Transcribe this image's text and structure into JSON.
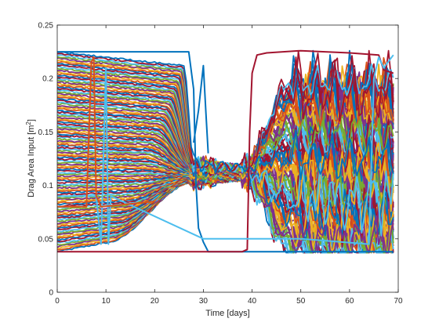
{
  "chart_data": {
    "type": "line",
    "title": "",
    "xlabel": "Time [days]",
    "ylabel_main": "Drag Area Input [m",
    "ylabel_sup": "2",
    "ylabel_end": "]",
    "xlim": [
      0,
      70
    ],
    "ylim": [
      0,
      0.25
    ],
    "x_ticks": [
      0,
      10,
      20,
      30,
      40,
      50,
      60,
      70
    ],
    "y_ticks": [
      0,
      0.05,
      0.1,
      0.15,
      0.2,
      0.25
    ],
    "x_tick_labels": [
      "0",
      "10",
      "20",
      "30",
      "40",
      "50",
      "60",
      "70"
    ],
    "y_tick_labels": [
      "0",
      "0.05",
      "0.1",
      "0.15",
      "0.2",
      "0.25"
    ],
    "grid": false,
    "legend": "none",
    "series_count": 120,
    "series_colors": [
      "#0072BD",
      "#D95319",
      "#EDB120",
      "#7E2F8E",
      "#77AC30",
      "#4DBEEE",
      "#A2142F"
    ],
    "highlight_series": [
      {
        "color": "#0072BD",
        "x": [
          0,
          27,
          28,
          28.5,
          29,
          30,
          31,
          32,
          69
        ],
        "y": [
          0.225,
          0.225,
          0.19,
          0.1,
          0.06,
          0.047,
          0.038,
          0.038,
          0.038
        ]
      },
      {
        "color": "#0072BD",
        "x": [
          28,
          29,
          30,
          30.5,
          31
        ],
        "y": [
          0.14,
          0.17,
          0.212,
          0.17,
          0.13
        ]
      },
      {
        "color": "#A2142F",
        "x": [
          0,
          38,
          39,
          39.5,
          40,
          41,
          43,
          50,
          60,
          66,
          67,
          69
        ],
        "y": [
          0.038,
          0.038,
          0.04,
          0.15,
          0.205,
          0.222,
          0.224,
          0.226,
          0.224,
          0.222,
          0.208,
          0.205
        ]
      },
      {
        "color": "#4DBEEE",
        "x": [
          0,
          8,
          9,
          10,
          10.5,
          11,
          30,
          50,
          64,
          65,
          66,
          67,
          69
        ],
        "y": [
          0.09,
          0.09,
          0.045,
          0.21,
          0.045,
          0.09,
          0.05,
          0.05,
          0.045,
          0.2,
          0.22,
          0.21,
          0.222
        ]
      },
      {
        "color": "#D95319",
        "x": [
          0,
          6,
          7,
          7.5,
          8,
          9,
          20
        ],
        "y": [
          0.08,
          0.08,
          0.215,
          0.22,
          0.09,
          0.08,
          0.085
        ]
      }
    ]
  }
}
